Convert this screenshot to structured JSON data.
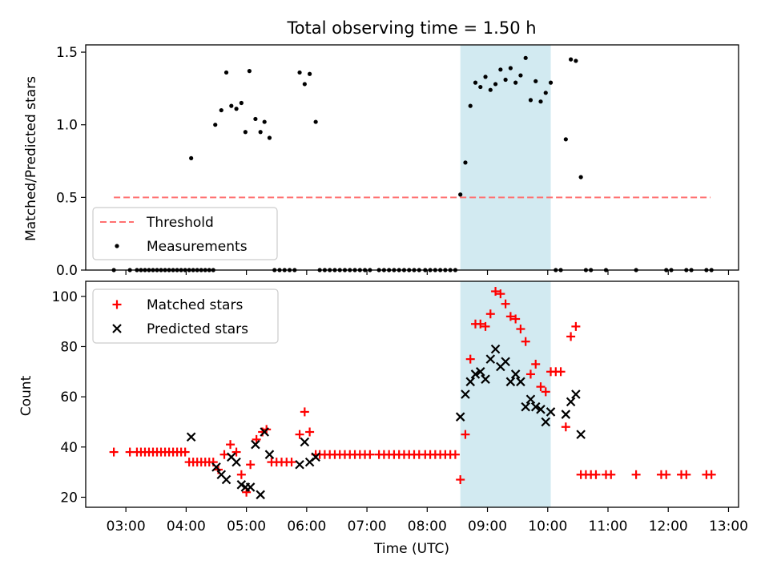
{
  "figure": {
    "title": "Total observing time = 1.50 h"
  },
  "chart_data": [
    {
      "type": "scatter",
      "ylabel": "Matched/Predicted stars",
      "xlabel": "",
      "ylim": [
        0,
        1.55
      ],
      "xlim": [
        "02:20",
        "13:10"
      ],
      "yticks": [
        0.0,
        0.5,
        1.0,
        1.5
      ],
      "ytick_labels": [
        "0.0",
        "0.5",
        "1.0",
        "1.5"
      ],
      "grid": false,
      "legend": "lower-left",
      "shaded_interval": {
        "start": "08:33",
        "end": "10:03",
        "color": "#add8e6"
      },
      "threshold": {
        "name": "Threshold",
        "value": 0.5,
        "from": "02:48",
        "to": "12:42",
        "color": "#ff7070"
      },
      "series": [
        {
          "name": "Measurements",
          "color": "#000000",
          "points": [
            [
              "02:48",
              0
            ],
            [
              "03:04",
              0
            ],
            [
              "03:11",
              0
            ],
            [
              "03:15",
              0
            ],
            [
              "03:19",
              0
            ],
            [
              "03:23",
              0
            ],
            [
              "03:27",
              0
            ],
            [
              "03:31",
              0
            ],
            [
              "03:35",
              0
            ],
            [
              "03:39",
              0
            ],
            [
              "03:43",
              0
            ],
            [
              "03:47",
              0
            ],
            [
              "03:51",
              0
            ],
            [
              "03:55",
              0
            ],
            [
              "03:59",
              0
            ],
            [
              "04:03",
              0
            ],
            [
              "04:07",
              0
            ],
            [
              "04:11",
              0
            ],
            [
              "04:15",
              0
            ],
            [
              "04:19",
              0
            ],
            [
              "04:23",
              0
            ],
            [
              "04:27",
              0
            ],
            [
              "04:05",
              0.77
            ],
            [
              "04:29",
              1.0
            ],
            [
              "04:35",
              1.1
            ],
            [
              "04:40",
              1.36
            ],
            [
              "04:45",
              1.13
            ],
            [
              "04:50",
              1.11
            ],
            [
              "04:55",
              1.15
            ],
            [
              "04:59",
              0.95
            ],
            [
              "05:03",
              1.37
            ],
            [
              "05:09",
              1.04
            ],
            [
              "05:14",
              0.95
            ],
            [
              "05:18",
              1.02
            ],
            [
              "05:23",
              0.91
            ],
            [
              "05:28",
              0
            ],
            [
              "05:33",
              0
            ],
            [
              "05:38",
              0
            ],
            [
              "05:43",
              0
            ],
            [
              "05:48",
              0
            ],
            [
              "05:53",
              1.36
            ],
            [
              "05:58",
              1.28
            ],
            [
              "06:03",
              1.35
            ],
            [
              "06:09",
              1.02
            ],
            [
              "06:13",
              0
            ],
            [
              "06:18",
              0
            ],
            [
              "06:23",
              0
            ],
            [
              "06:28",
              0
            ],
            [
              "06:33",
              0
            ],
            [
              "06:38",
              0
            ],
            [
              "06:43",
              0
            ],
            [
              "06:48",
              0
            ],
            [
              "06:53",
              0
            ],
            [
              "06:58",
              0
            ],
            [
              "07:03",
              0
            ],
            [
              "07:12",
              0
            ],
            [
              "07:17",
              0
            ],
            [
              "07:22",
              0
            ],
            [
              "07:27",
              0
            ],
            [
              "07:32",
              0
            ],
            [
              "07:37",
              0
            ],
            [
              "07:42",
              0
            ],
            [
              "07:47",
              0
            ],
            [
              "07:52",
              0
            ],
            [
              "07:58",
              0
            ],
            [
              "08:03",
              0
            ],
            [
              "08:08",
              0
            ],
            [
              "08:13",
              0
            ],
            [
              "08:18",
              0
            ],
            [
              "08:23",
              0
            ],
            [
              "08:28",
              0
            ],
            [
              "08:33",
              0.52
            ],
            [
              "08:38",
              0.74
            ],
            [
              "08:43",
              1.13
            ],
            [
              "08:48",
              1.29
            ],
            [
              "08:53",
              1.26
            ],
            [
              "08:58",
              1.33
            ],
            [
              "09:03",
              1.24
            ],
            [
              "09:08",
              1.28
            ],
            [
              "09:13",
              1.38
            ],
            [
              "09:18",
              1.31
            ],
            [
              "09:23",
              1.39
            ],
            [
              "09:28",
              1.29
            ],
            [
              "09:33",
              1.34
            ],
            [
              "09:38",
              1.46
            ],
            [
              "09:43",
              1.17
            ],
            [
              "09:48",
              1.3
            ],
            [
              "09:53",
              1.16
            ],
            [
              "09:58",
              1.22
            ],
            [
              "10:03",
              1.29
            ],
            [
              "10:08",
              0
            ],
            [
              "10:13",
              0
            ],
            [
              "10:18",
              0.9
            ],
            [
              "10:23",
              1.45
            ],
            [
              "10:28",
              1.44
            ],
            [
              "10:33",
              0.64
            ],
            [
              "10:38",
              0
            ],
            [
              "10:43",
              0
            ],
            [
              "10:58",
              0
            ],
            [
              "11:28",
              0
            ],
            [
              "11:58",
              0
            ],
            [
              "12:03",
              0
            ],
            [
              "12:18",
              0
            ],
            [
              "12:23",
              0
            ],
            [
              "12:38",
              0
            ],
            [
              "12:43",
              0
            ]
          ]
        }
      ]
    },
    {
      "type": "scatter",
      "ylabel": "Count",
      "xlabel": "Time (UTC)",
      "ylim": [
        16,
        106
      ],
      "xlim": [
        "02:20",
        "13:10"
      ],
      "yticks": [
        20,
        40,
        60,
        80,
        100
      ],
      "ytick_labels": [
        "20",
        "40",
        "60",
        "80",
        "100"
      ],
      "xticks": [
        "03:00",
        "04:00",
        "05:00",
        "06:00",
        "07:00",
        "08:00",
        "09:00",
        "10:00",
        "11:00",
        "12:00",
        "13:00"
      ],
      "grid": false,
      "legend": "top-left",
      "shaded_interval": {
        "start": "08:33",
        "end": "10:03",
        "color": "#add8e6"
      },
      "series": [
        {
          "name": "Matched stars",
          "marker": "+",
          "color": "#ff0000",
          "points": [
            [
              "02:48",
              38
            ],
            [
              "03:04",
              38
            ],
            [
              "03:11",
              38
            ],
            [
              "03:15",
              38
            ],
            [
              "03:19",
              38
            ],
            [
              "03:23",
              38
            ],
            [
              "03:27",
              38
            ],
            [
              "03:31",
              38
            ],
            [
              "03:35",
              38
            ],
            [
              "03:39",
              38
            ],
            [
              "03:43",
              38
            ],
            [
              "03:47",
              38
            ],
            [
              "03:51",
              38
            ],
            [
              "03:55",
              38
            ],
            [
              "03:59",
              38
            ],
            [
              "04:03",
              34
            ],
            [
              "04:07",
              34
            ],
            [
              "04:11",
              34
            ],
            [
              "04:15",
              34
            ],
            [
              "04:19",
              34
            ],
            [
              "04:23",
              34
            ],
            [
              "04:27",
              34
            ],
            [
              "04:32",
              31
            ],
            [
              "04:38",
              37
            ],
            [
              "04:44",
              41
            ],
            [
              "04:50",
              38
            ],
            [
              "04:55",
              29
            ],
            [
              "05:00",
              22
            ],
            [
              "05:04",
              33
            ],
            [
              "05:10",
              43
            ],
            [
              "05:16",
              46
            ],
            [
              "05:20",
              47
            ],
            [
              "05:25",
              34
            ],
            [
              "05:30",
              34
            ],
            [
              "05:35",
              34
            ],
            [
              "05:40",
              34
            ],
            [
              "05:45",
              34
            ],
            [
              "05:53",
              45
            ],
            [
              "05:58",
              54
            ],
            [
              "06:03",
              46
            ],
            [
              "06:09",
              37
            ],
            [
              "06:13",
              37
            ],
            [
              "06:18",
              37
            ],
            [
              "06:23",
              37
            ],
            [
              "06:28",
              37
            ],
            [
              "06:33",
              37
            ],
            [
              "06:38",
              37
            ],
            [
              "06:43",
              37
            ],
            [
              "06:48",
              37
            ],
            [
              "06:53",
              37
            ],
            [
              "06:58",
              37
            ],
            [
              "07:03",
              37
            ],
            [
              "07:12",
              37
            ],
            [
              "07:17",
              37
            ],
            [
              "07:22",
              37
            ],
            [
              "07:27",
              37
            ],
            [
              "07:32",
              37
            ],
            [
              "07:37",
              37
            ],
            [
              "07:42",
              37
            ],
            [
              "07:47",
              37
            ],
            [
              "07:52",
              37
            ],
            [
              "07:58",
              37
            ],
            [
              "08:03",
              37
            ],
            [
              "08:08",
              37
            ],
            [
              "08:13",
              37
            ],
            [
              "08:18",
              37
            ],
            [
              "08:23",
              37
            ],
            [
              "08:28",
              37
            ],
            [
              "08:33",
              27
            ],
            [
              "08:38",
              45
            ],
            [
              "08:43",
              75
            ],
            [
              "08:48",
              89
            ],
            [
              "08:53",
              89
            ],
            [
              "08:58",
              88
            ],
            [
              "09:03",
              93
            ],
            [
              "09:08",
              102
            ],
            [
              "09:13",
              101
            ],
            [
              "09:18",
              97
            ],
            [
              "09:23",
              92
            ],
            [
              "09:28",
              91
            ],
            [
              "09:33",
              87
            ],
            [
              "09:38",
              82
            ],
            [
              "09:43",
              69
            ],
            [
              "09:48",
              73
            ],
            [
              "09:53",
              64
            ],
            [
              "09:58",
              62
            ],
            [
              "10:03",
              70
            ],
            [
              "10:08",
              70
            ],
            [
              "10:13",
              70
            ],
            [
              "10:18",
              48
            ],
            [
              "10:23",
              84
            ],
            [
              "10:28",
              88
            ],
            [
              "10:33",
              29
            ],
            [
              "10:38",
              29
            ],
            [
              "10:43",
              29
            ],
            [
              "10:48",
              29
            ],
            [
              "10:58",
              29
            ],
            [
              "11:03",
              29
            ],
            [
              "11:28",
              29
            ],
            [
              "11:53",
              29
            ],
            [
              "11:58",
              29
            ],
            [
              "12:13",
              29
            ],
            [
              "12:18",
              29
            ],
            [
              "12:38",
              29
            ],
            [
              "12:43",
              29
            ]
          ]
        },
        {
          "name": "Predicted stars",
          "marker": "x",
          "color": "#000000",
          "points": [
            [
              "04:05",
              44
            ],
            [
              "04:30",
              32
            ],
            [
              "04:35",
              29
            ],
            [
              "04:40",
              27
            ],
            [
              "04:45",
              36
            ],
            [
              "04:50",
              34
            ],
            [
              "04:55",
              25
            ],
            [
              "04:59",
              24
            ],
            [
              "05:04",
              24
            ],
            [
              "05:09",
              41
            ],
            [
              "05:14",
              21
            ],
            [
              "05:18",
              46
            ],
            [
              "05:23",
              37
            ],
            [
              "05:53",
              33
            ],
            [
              "05:58",
              42
            ],
            [
              "06:03",
              34
            ],
            [
              "06:09",
              36
            ],
            [
              "08:33",
              52
            ],
            [
              "08:38",
              61
            ],
            [
              "08:43",
              66
            ],
            [
              "08:48",
              69
            ],
            [
              "08:53",
              70
            ],
            [
              "08:58",
              67
            ],
            [
              "09:03",
              75
            ],
            [
              "09:08",
              79
            ],
            [
              "09:13",
              72
            ],
            [
              "09:18",
              74
            ],
            [
              "09:23",
              66
            ],
            [
              "09:28",
              69
            ],
            [
              "09:33",
              66
            ],
            [
              "09:38",
              56
            ],
            [
              "09:43",
              59
            ],
            [
              "09:48",
              56
            ],
            [
              "09:53",
              55
            ],
            [
              "09:58",
              50
            ],
            [
              "10:03",
              54
            ],
            [
              "10:18",
              53
            ],
            [
              "10:23",
              58
            ],
            [
              "10:28",
              61
            ],
            [
              "10:33",
              45
            ]
          ]
        }
      ]
    }
  ]
}
